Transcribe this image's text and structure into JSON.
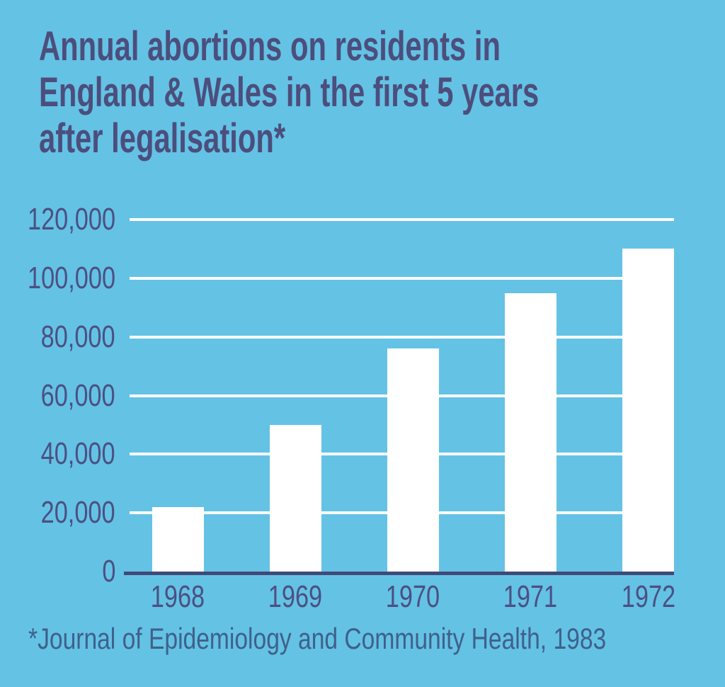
{
  "title": {
    "lines": [
      "Annual abortions on residents in",
      "England & Wales in the first 5 years",
      "after legalisation*"
    ]
  },
  "footer": {
    "text": "*Journal of Epidemiology and Community Health, 1983"
  },
  "colors": {
    "background": "#64c2e5",
    "title_text": "#4c4e7c",
    "tick_text": "#4b5082",
    "axis_line": "#404a78",
    "bar": "#ffffff",
    "gridline": "#ffffff",
    "footer_text": "#3e618a"
  },
  "chart_data": {
    "type": "bar",
    "title": "Annual abortions on residents in England & Wales in the first 5 years after legalisation*",
    "source_note": "*Journal of Epidemiology and Community Health, 1983",
    "categories": [
      "1968",
      "1969",
      "1970",
      "1971",
      "1972"
    ],
    "values": [
      22000,
      50000,
      76000,
      95000,
      110000
    ],
    "xlabel": "",
    "ylabel": "",
    "ylim": [
      0,
      120000
    ],
    "ytick_values": [
      0,
      20000,
      40000,
      60000,
      80000,
      100000,
      120000
    ],
    "ytick_labels": [
      "0",
      "20,000",
      "40,000",
      "60,000",
      "80,000",
      "100,000",
      "120,000"
    ],
    "grid": "horizontal",
    "legend_position": "none"
  }
}
